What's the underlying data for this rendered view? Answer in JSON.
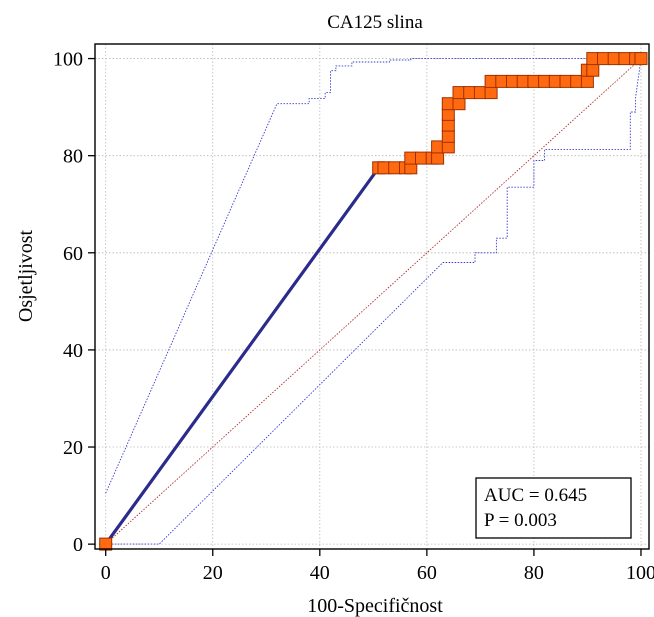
{
  "chart_data": {
    "type": "line",
    "title": "CA125 slina",
    "xlabel": "100-Specifičnost",
    "ylabel": "Osjetljivost",
    "xlim": [
      -2,
      101.5
    ],
    "ylim": [
      -1,
      103
    ],
    "xticks": [
      0,
      20,
      40,
      60,
      80,
      100
    ],
    "yticks": [
      0,
      20,
      40,
      60,
      80,
      100
    ],
    "grid": true,
    "colors": {
      "roc": "#2b2b8c",
      "ci": "#3a3ad0",
      "diagonal": "#b03030",
      "marker_fill": "#ff6a10",
      "marker_stroke": "#a03000",
      "grid": "#b8b8b8"
    },
    "series": [
      {
        "kind": "roc",
        "points": [
          [
            0,
            0
          ],
          [
            51,
            77.5
          ],
          [
            52,
            77.5
          ],
          [
            54,
            77.5
          ],
          [
            56,
            77.5
          ],
          [
            57,
            77.5
          ],
          [
            57,
            79.5
          ],
          [
            59,
            79.5
          ],
          [
            61,
            79.5
          ],
          [
            62,
            79.5
          ],
          [
            62,
            81.8
          ],
          [
            64,
            81.8
          ],
          [
            64,
            84
          ],
          [
            64,
            86.3
          ],
          [
            64,
            88.5
          ],
          [
            64,
            90.7
          ],
          [
            66,
            90.7
          ],
          [
            66,
            93
          ],
          [
            68,
            93
          ],
          [
            70,
            93
          ],
          [
            72,
            93
          ],
          [
            72,
            95.3
          ],
          [
            74,
            95.3
          ],
          [
            76,
            95.3
          ],
          [
            78,
            95.3
          ],
          [
            80,
            95.3
          ],
          [
            82,
            95.3
          ],
          [
            84,
            95.3
          ],
          [
            86,
            95.3
          ],
          [
            88,
            95.3
          ],
          [
            90,
            95.3
          ],
          [
            90,
            97.6
          ],
          [
            91,
            97.6
          ],
          [
            91,
            100
          ],
          [
            93,
            100
          ],
          [
            95,
            100
          ],
          [
            97,
            100
          ],
          [
            99,
            100
          ],
          [
            100,
            100
          ]
        ]
      },
      {
        "kind": "ci_upper",
        "points": [
          [
            0,
            10.5
          ],
          [
            32,
            90.7
          ],
          [
            38,
            90.7
          ],
          [
            38,
            91.8
          ],
          [
            40,
            91.8
          ],
          [
            41,
            91.8
          ],
          [
            41,
            93
          ],
          [
            42,
            93
          ],
          [
            42,
            97.5
          ],
          [
            43,
            97.5
          ],
          [
            43,
            98.5
          ],
          [
            46,
            98.5
          ],
          [
            46,
            99.3
          ],
          [
            53,
            99.3
          ],
          [
            53,
            99.7
          ],
          [
            57,
            99.7
          ],
          [
            57,
            100
          ],
          [
            100,
            100
          ]
        ]
      },
      {
        "kind": "ci_lower",
        "points": [
          [
            0,
            0
          ],
          [
            10,
            0
          ],
          [
            63,
            58
          ],
          [
            69,
            58
          ],
          [
            69,
            60
          ],
          [
            73,
            60
          ],
          [
            73,
            63
          ],
          [
            75,
            63
          ],
          [
            75,
            73.5
          ],
          [
            80,
            73.5
          ],
          [
            80,
            79
          ],
          [
            82,
            79
          ],
          [
            82,
            81.3
          ],
          [
            89,
            81.3
          ],
          [
            89,
            81.3
          ],
          [
            98,
            81.3
          ],
          [
            98,
            89
          ],
          [
            99,
            89
          ],
          [
            99,
            92
          ],
          [
            100,
            100
          ]
        ]
      },
      {
        "kind": "diagonal",
        "points": [
          [
            0,
            0
          ],
          [
            100,
            100
          ]
        ]
      }
    ],
    "annotation": {
      "auc": "AUC = 0.645",
      "p": "P = 0.003"
    }
  }
}
